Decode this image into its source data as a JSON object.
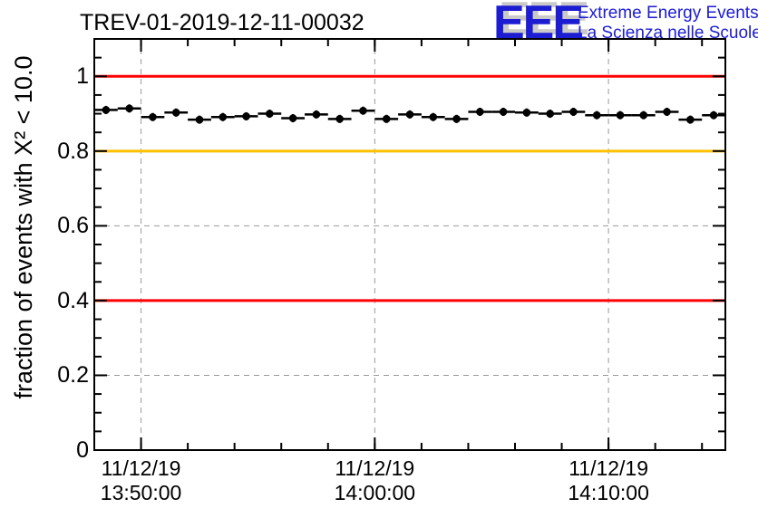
{
  "header": {
    "title": "TREV-01-2019-12-11-00032"
  },
  "logo": {
    "acronym": "EEE",
    "line1": "Extreme Energy Events",
    "line2": "La Scienza nelle Scuole",
    "color": "#1c1cd2",
    "shadow_color": "#c9c9c9"
  },
  "chart_data": {
    "type": "scatter",
    "title": "TREV-01-2019-12-11-00032",
    "xlabel": "",
    "ylabel": "fraction of events with X² < 10.0",
    "date": "11/12/19",
    "x_range": [
      "13:48:00",
      "14:15:00"
    ],
    "ylim": [
      0,
      1.1
    ],
    "y_major_tick_step": 0.2,
    "y_minor_tick_step": 0.05,
    "y_tick_labels": [
      "0",
      "0.2",
      "0.4",
      "0.6",
      "0.8",
      "1"
    ],
    "x_minor_tick_step_minutes": 2,
    "x_major_ticks": [
      {
        "time": "13:50:00",
        "label_line1": "11/12/19",
        "label_line2": "13:50:00"
      },
      {
        "time": "14:00:00",
        "label_line1": "11/12/19",
        "label_line2": "14:00:00"
      },
      {
        "time": "14:10:00",
        "label_line1": "11/12/19",
        "label_line2": "14:10:00"
      }
    ],
    "grid": {
      "show": true,
      "color": "#999999",
      "style": "dashed"
    },
    "reference_lines": [
      {
        "y": 1.0,
        "color": "#ff0000"
      },
      {
        "y": 0.8,
        "color": "#ffc000"
      },
      {
        "y": 0.4,
        "color": "#ff0000"
      }
    ],
    "series": [
      {
        "name": "fraction of events with X² < 10.0",
        "marker": "filled-circle",
        "color": "#000000",
        "x_bin_halfwidth_seconds": 30,
        "points": [
          {
            "time": "13:48:30",
            "value": 0.91
          },
          {
            "time": "13:49:30",
            "value": 0.914
          },
          {
            "time": "13:50:30",
            "value": 0.891
          },
          {
            "time": "13:51:30",
            "value": 0.903
          },
          {
            "time": "13:52:30",
            "value": 0.884
          },
          {
            "time": "13:53:30",
            "value": 0.891
          },
          {
            "time": "13:54:30",
            "value": 0.893
          },
          {
            "time": "13:55:30",
            "value": 0.9
          },
          {
            "time": "13:56:30",
            "value": 0.888
          },
          {
            "time": "13:57:30",
            "value": 0.898
          },
          {
            "time": "13:58:30",
            "value": 0.886
          },
          {
            "time": "13:59:30",
            "value": 0.908
          },
          {
            "time": "14:00:30",
            "value": 0.886
          },
          {
            "time": "14:01:30",
            "value": 0.898
          },
          {
            "time": "14:02:30",
            "value": 0.891
          },
          {
            "time": "14:03:30",
            "value": 0.886
          },
          {
            "time": "14:04:30",
            "value": 0.905
          },
          {
            "time": "14:05:30",
            "value": 0.905
          },
          {
            "time": "14:06:30",
            "value": 0.903
          },
          {
            "time": "14:07:30",
            "value": 0.9
          },
          {
            "time": "14:08:30",
            "value": 0.905
          },
          {
            "time": "14:09:30",
            "value": 0.896
          },
          {
            "time": "14:10:30",
            "value": 0.896
          },
          {
            "time": "14:11:30",
            "value": 0.896
          },
          {
            "time": "14:12:30",
            "value": 0.905
          },
          {
            "time": "14:13:30",
            "value": 0.884
          },
          {
            "time": "14:14:30",
            "value": 0.896
          }
        ]
      }
    ]
  }
}
